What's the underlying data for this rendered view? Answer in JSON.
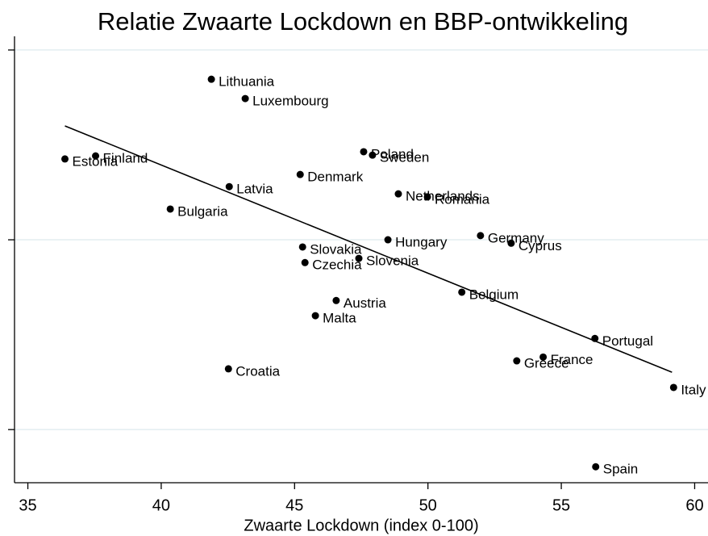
{
  "chart_data": {
    "type": "scatter",
    "title": "Relatie Zwaarte Lockdown en BBP-ontwikkeling",
    "x_label": "Zwaarte Lockdown (index 0-100)",
    "categories": [
      "Lithuania",
      "Luxembourg",
      "Estonia",
      "Finland",
      "Poland",
      "Sweden",
      "Denmark",
      "Latvia",
      "Netherlands",
      "Romania",
      "Bulgaria",
      "Hungary",
      "Germany",
      "Cyprus",
      "Slovakia",
      "Slovenia",
      "Czechia",
      "Belgium",
      "Austria",
      "Malta",
      "Portugal",
      "France",
      "Greece",
      "Croatia",
      "Italy",
      "Spain"
    ],
    "x": [
      41.88,
      43.15,
      36.39,
      37.54,
      47.59,
      47.92,
      45.21,
      42.55,
      48.89,
      49.98,
      40.34,
      48.5,
      51.97,
      53.12,
      45.3,
      47.41,
      45.39,
      51.27,
      46.56,
      45.78,
      56.26,
      54.32,
      53.33,
      42.52,
      59.21,
      56.29
    ],
    "values": [
      -0.77,
      -1.28,
      -2.87,
      -2.79,
      -2.68,
      -2.77,
      -3.28,
      -3.6,
      -3.79,
      -3.87,
      -4.19,
      -5.0,
      -4.89,
      -5.09,
      -5.19,
      -5.49,
      -5.6,
      -6.38,
      -6.6,
      -7.0,
      -7.6,
      -8.09,
      -8.19,
      -8.4,
      -8.89,
      -10.98
    ],
    "color": "#000000",
    "trendline": {
      "x": [
        36.39,
        59.15
      ],
      "y": [
        -2.0,
        -8.49
      ]
    },
    "xlim": [
      34.5,
      60.5
    ],
    "xticks": [
      35,
      40,
      45,
      50,
      55,
      60
    ],
    "ylim": [
      -11.4,
      0.36
    ],
    "yticks": [
      0,
      -5,
      -10
    ],
    "grid": true
  }
}
